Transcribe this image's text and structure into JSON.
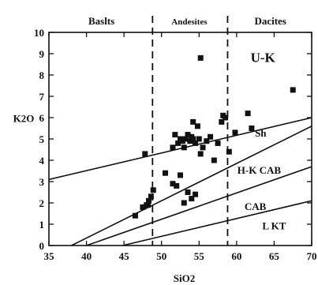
{
  "chart_data": {
    "type": "scatter",
    "title": "",
    "xlabel": "SiO2",
    "ylabel": "K2O",
    "xlim": [
      35,
      70
    ],
    "ylim": [
      0,
      10
    ],
    "xticks": [
      35,
      40,
      45,
      50,
      55,
      60,
      65,
      70
    ],
    "yticks": [
      0,
      1,
      2,
      3,
      4,
      5,
      6,
      7,
      8,
      9,
      10
    ],
    "grid": false,
    "marker": "square",
    "marker_color": "#111111",
    "points": [
      [
        46.5,
        1.4
      ],
      [
        47.5,
        1.8
      ],
      [
        48.0,
        1.9
      ],
      [
        48.3,
        2.1
      ],
      [
        48.6,
        2.3
      ],
      [
        48.9,
        2.6
      ],
      [
        48.2,
        1.9
      ],
      [
        47.8,
        4.3
      ],
      [
        50.5,
        3.4
      ],
      [
        51.5,
        2.9
      ],
      [
        52.0,
        2.8
      ],
      [
        52.5,
        3.3
      ],
      [
        53.0,
        2.0
      ],
      [
        53.5,
        2.5
      ],
      [
        54.0,
        2.2
      ],
      [
        54.5,
        2.4
      ],
      [
        51.5,
        4.6
      ],
      [
        51.8,
        5.2
      ],
      [
        52.2,
        4.8
      ],
      [
        52.5,
        5.0
      ],
      [
        52.8,
        4.9
      ],
      [
        53.0,
        4.6
      ],
      [
        53.2,
        5.0
      ],
      [
        53.5,
        5.2
      ],
      [
        53.8,
        4.9
      ],
      [
        54.0,
        5.1
      ],
      [
        54.2,
        5.0
      ],
      [
        54.2,
        5.8
      ],
      [
        54.5,
        4.8
      ],
      [
        54.8,
        5.6
      ],
      [
        55.0,
        5.0
      ],
      [
        55.2,
        4.3
      ],
      [
        55.5,
        4.6
      ],
      [
        56.0,
        4.9
      ],
      [
        56.5,
        5.1
      ],
      [
        57.0,
        4.0
      ],
      [
        57.5,
        4.8
      ],
      [
        58.0,
        5.8
      ],
      [
        58.2,
        6.1
      ],
      [
        58.5,
        6.0
      ],
      [
        59.0,
        4.4
      ],
      [
        55.2,
        8.8
      ],
      [
        59.8,
        5.3
      ],
      [
        61.5,
        6.2
      ],
      [
        62.0,
        5.5
      ],
      [
        67.5,
        7.3
      ]
    ],
    "lines": [
      {
        "name": "Sh",
        "x": [
          35,
          70
        ],
        "y": [
          3.1,
          6.0
        ]
      },
      {
        "name": "H-K CAB",
        "x": [
          38,
          70
        ],
        "y": [
          0,
          5.6
        ]
      },
      {
        "name": "CAB",
        "x": [
          40,
          70
        ],
        "y": [
          0,
          3.7
        ]
      },
      {
        "name": "L-KT",
        "x": [
          44.8,
          70
        ],
        "y": [
          0,
          2.1
        ]
      }
    ],
    "dividers": [
      48.8,
      58.8
    ],
    "regions": [
      {
        "label": "Baslts",
        "x": 42.0,
        "y": 10.5
      },
      {
        "label": "Andesites",
        "x": 53.7,
        "y": 10.5
      },
      {
        "label": "Dacites",
        "x": 64.5,
        "y": 10.5
      }
    ],
    "field_labels": [
      {
        "label": "U-K",
        "x": 63.5,
        "y": 8.8
      },
      {
        "label": "Sh",
        "x": 63.2,
        "y": 5.3
      },
      {
        "label": "H-K CAB",
        "x": 63.0,
        "y": 3.55
      },
      {
        "label": "CAB",
        "x": 62.5,
        "y": 1.85
      },
      {
        "label": "L KT",
        "x": 65.0,
        "y": 0.95
      }
    ]
  }
}
